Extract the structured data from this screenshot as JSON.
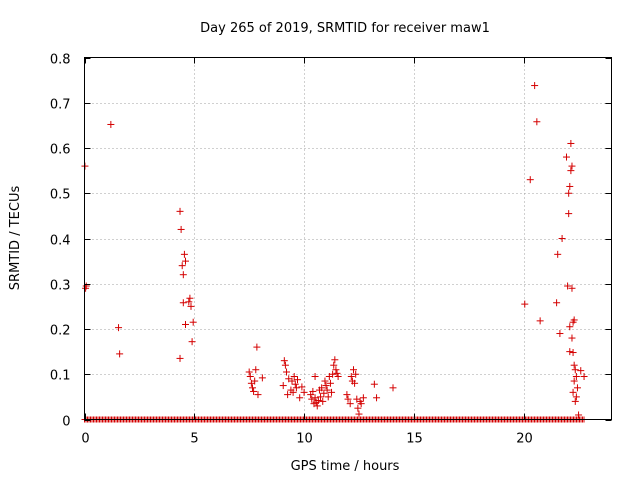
{
  "chart_data": {
    "type": "scatter",
    "title": "Day 265 of 2019, SRMTID for receiver maw1",
    "xlabel": "GPS time / hours",
    "ylabel": "SRMTID / TECUs",
    "xlim": [
      0,
      24
    ],
    "ylim": [
      0,
      0.8
    ],
    "xticks": [
      0,
      5,
      10,
      15,
      20
    ],
    "xtick_labels": [
      "0",
      "5",
      "10",
      "15",
      "20"
    ],
    "yticks": [
      0,
      0.1,
      0.2,
      0.3,
      0.4,
      0.5,
      0.6,
      0.7,
      0.8
    ],
    "ytick_labels": [
      "0",
      "0.1",
      "0.2",
      "0.3",
      "0.4",
      "0.5",
      "0.6",
      "0.7",
      "0.8"
    ],
    "grid": true,
    "marker": "+",
    "marker_color": "#d40000",
    "baseline_zero_range": [
      0,
      22.8
    ],
    "series": [
      {
        "name": "maw1",
        "points": [
          [
            0.02,
            0.56
          ],
          [
            0.05,
            0.29
          ],
          [
            0.08,
            0.295
          ],
          [
            1.2,
            0.652
          ],
          [
            1.55,
            0.203
          ],
          [
            1.6,
            0.145
          ],
          [
            4.35,
            0.46
          ],
          [
            4.4,
            0.42
          ],
          [
            4.35,
            0.135
          ],
          [
            4.45,
            0.34
          ],
          [
            4.5,
            0.32
          ],
          [
            4.55,
            0.365
          ],
          [
            4.6,
            0.35
          ],
          [
            4.5,
            0.258
          ],
          [
            4.6,
            0.21
          ],
          [
            4.8,
            0.268
          ],
          [
            4.85,
            0.25
          ],
          [
            4.75,
            0.26
          ],
          [
            4.95,
            0.215
          ],
          [
            4.9,
            0.172
          ],
          [
            7.5,
            0.105
          ],
          [
            7.55,
            0.095
          ],
          [
            7.6,
            0.08
          ],
          [
            7.65,
            0.07
          ],
          [
            7.7,
            0.062
          ],
          [
            7.75,
            0.085
          ],
          [
            7.8,
            0.11
          ],
          [
            7.85,
            0.16
          ],
          [
            7.9,
            0.055
          ],
          [
            8.1,
            0.092
          ],
          [
            9.05,
            0.075
          ],
          [
            9.1,
            0.13
          ],
          [
            9.15,
            0.12
          ],
          [
            9.2,
            0.105
          ],
          [
            9.25,
            0.055
          ],
          [
            9.3,
            0.09
          ],
          [
            9.4,
            0.065
          ],
          [
            9.45,
            0.085
          ],
          [
            9.5,
            0.06
          ],
          [
            9.55,
            0.095
          ],
          [
            9.6,
            0.078
          ],
          [
            9.65,
            0.07
          ],
          [
            9.7,
            0.088
          ],
          [
            9.8,
            0.048
          ],
          [
            9.9,
            0.072
          ],
          [
            10.0,
            0.06
          ],
          [
            10.3,
            0.055
          ],
          [
            10.35,
            0.045
          ],
          [
            10.4,
            0.062
          ],
          [
            10.45,
            0.035
          ],
          [
            10.5,
            0.048
          ],
          [
            10.55,
            0.038
          ],
          [
            10.6,
            0.03
          ],
          [
            10.65,
            0.042
          ],
          [
            10.7,
            0.065
          ],
          [
            10.75,
            0.05
          ],
          [
            10.8,
            0.07
          ],
          [
            10.85,
            0.04
          ],
          [
            10.9,
            0.058
          ],
          [
            10.95,
            0.085
          ],
          [
            11.0,
            0.075
          ],
          [
            11.05,
            0.065
          ],
          [
            11.1,
            0.05
          ],
          [
            11.15,
            0.095
          ],
          [
            11.2,
            0.08
          ],
          [
            11.25,
            0.06
          ],
          [
            11.3,
            0.1
          ],
          [
            11.35,
            0.12
          ],
          [
            11.4,
            0.132
          ],
          [
            11.45,
            0.11
          ],
          [
            11.5,
            0.102
          ],
          [
            11.55,
            0.095
          ],
          [
            10.5,
            0.095
          ],
          [
            11.95,
            0.055
          ],
          [
            12.0,
            0.045
          ],
          [
            12.1,
            0.035
          ],
          [
            12.15,
            0.095
          ],
          [
            12.2,
            0.085
          ],
          [
            12.25,
            0.11
          ],
          [
            12.3,
            0.08
          ],
          [
            12.35,
            0.1
          ],
          [
            12.4,
            0.045
          ],
          [
            12.45,
            0.025
          ],
          [
            12.5,
            0.012
          ],
          [
            12.55,
            0.04
          ],
          [
            12.6,
            0.035
          ],
          [
            12.7,
            0.048
          ],
          [
            13.2,
            0.078
          ],
          [
            13.3,
            0.048
          ],
          [
            14.05,
            0.07
          ],
          [
            20.05,
            0.255
          ],
          [
            20.3,
            0.53
          ],
          [
            20.5,
            0.738
          ],
          [
            20.6,
            0.658
          ],
          [
            20.75,
            0.218
          ],
          [
            21.5,
            0.258
          ],
          [
            21.55,
            0.365
          ],
          [
            21.65,
            0.19
          ],
          [
            21.75,
            0.4
          ],
          [
            21.95,
            0.58
          ],
          [
            22.05,
            0.5
          ],
          [
            22.0,
            0.295
          ],
          [
            22.1,
            0.515
          ],
          [
            22.05,
            0.455
          ],
          [
            22.15,
            0.61
          ],
          [
            22.15,
            0.55
          ],
          [
            22.2,
            0.56
          ],
          [
            22.1,
            0.205
          ],
          [
            22.1,
            0.15
          ],
          [
            22.2,
            0.29
          ],
          [
            22.25,
            0.215
          ],
          [
            22.3,
            0.22
          ],
          [
            22.2,
            0.18
          ],
          [
            22.25,
            0.148
          ],
          [
            22.3,
            0.12
          ],
          [
            22.35,
            0.11
          ],
          [
            22.3,
            0.085
          ],
          [
            22.4,
            0.095
          ],
          [
            22.25,
            0.06
          ],
          [
            22.35,
            0.04
          ],
          [
            22.4,
            0.05
          ],
          [
            22.45,
            0.07
          ],
          [
            22.6,
            0.108
          ],
          [
            22.75,
            0.095
          ],
          [
            22.5,
            0.01
          ]
        ]
      }
    ]
  }
}
